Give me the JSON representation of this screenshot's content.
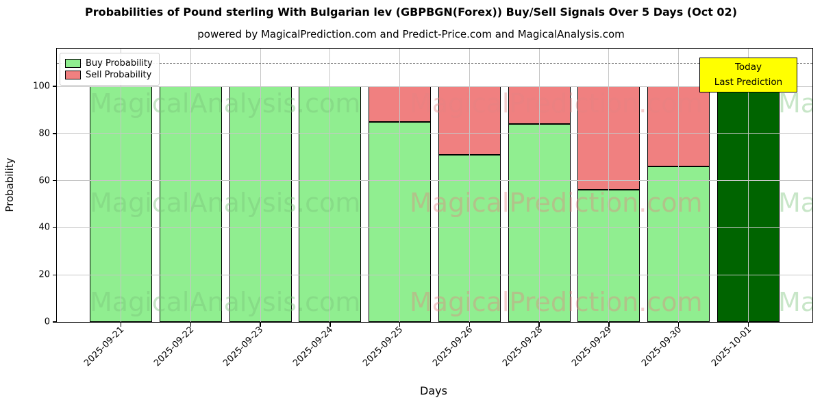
{
  "header": {
    "title": "Probabilities of Pound sterling With Bulgarian lev (GBPBGN(Forex)) Buy/Sell Signals Over 5 Days (Oct 02)",
    "subtitle": "powered by MagicalPrediction.com and Predict-Price.com and MagicalAnalysis.com"
  },
  "axes": {
    "x_label": "Days",
    "y_label": "Probability"
  },
  "legend": {
    "items": [
      {
        "label": "Buy Probability",
        "color": "#90ee90"
      },
      {
        "label": "Sell Probability",
        "color": "#f08080"
      }
    ]
  },
  "annotation": {
    "lines": [
      "Today",
      "Last Prediction"
    ],
    "bg_color": "#ffff00"
  },
  "watermarks": {
    "left_text": "MagicalAnalysis.com",
    "right_text": "MagicalPrediction.com"
  },
  "chart_data": {
    "type": "bar",
    "stacked": true,
    "title": "Probabilities of Pound sterling With Bulgarian lev (GBPBGN(Forex)) Buy/Sell Signals Over 5 Days (Oct 02)",
    "xlabel": "Days",
    "ylabel": "Probability",
    "categories": [
      "2025-09-21",
      "2025-09-22",
      "2025-09-23",
      "2025-09-24",
      "2025-09-25",
      "2025-09-26",
      "2025-09-28",
      "2025-09-29",
      "2025-09-30",
      "2025-10-01"
    ],
    "series": [
      {
        "name": "Buy Probability",
        "color": "#90ee90",
        "values": [
          100,
          100,
          100,
          100,
          85,
          71,
          84,
          56,
          66,
          100
        ]
      },
      {
        "name": "Sell Probability",
        "color": "#f08080",
        "values": [
          0,
          0,
          0,
          0,
          15,
          29,
          16,
          44,
          34,
          0
        ]
      }
    ],
    "today_bar": {
      "index": 9,
      "color": "#006400"
    },
    "y_ticks": [
      0,
      20,
      40,
      60,
      80,
      100
    ],
    "ylim": [
      0,
      116
    ],
    "dashed_line_y": 110,
    "grid": true,
    "legend_position": "upper-left"
  }
}
